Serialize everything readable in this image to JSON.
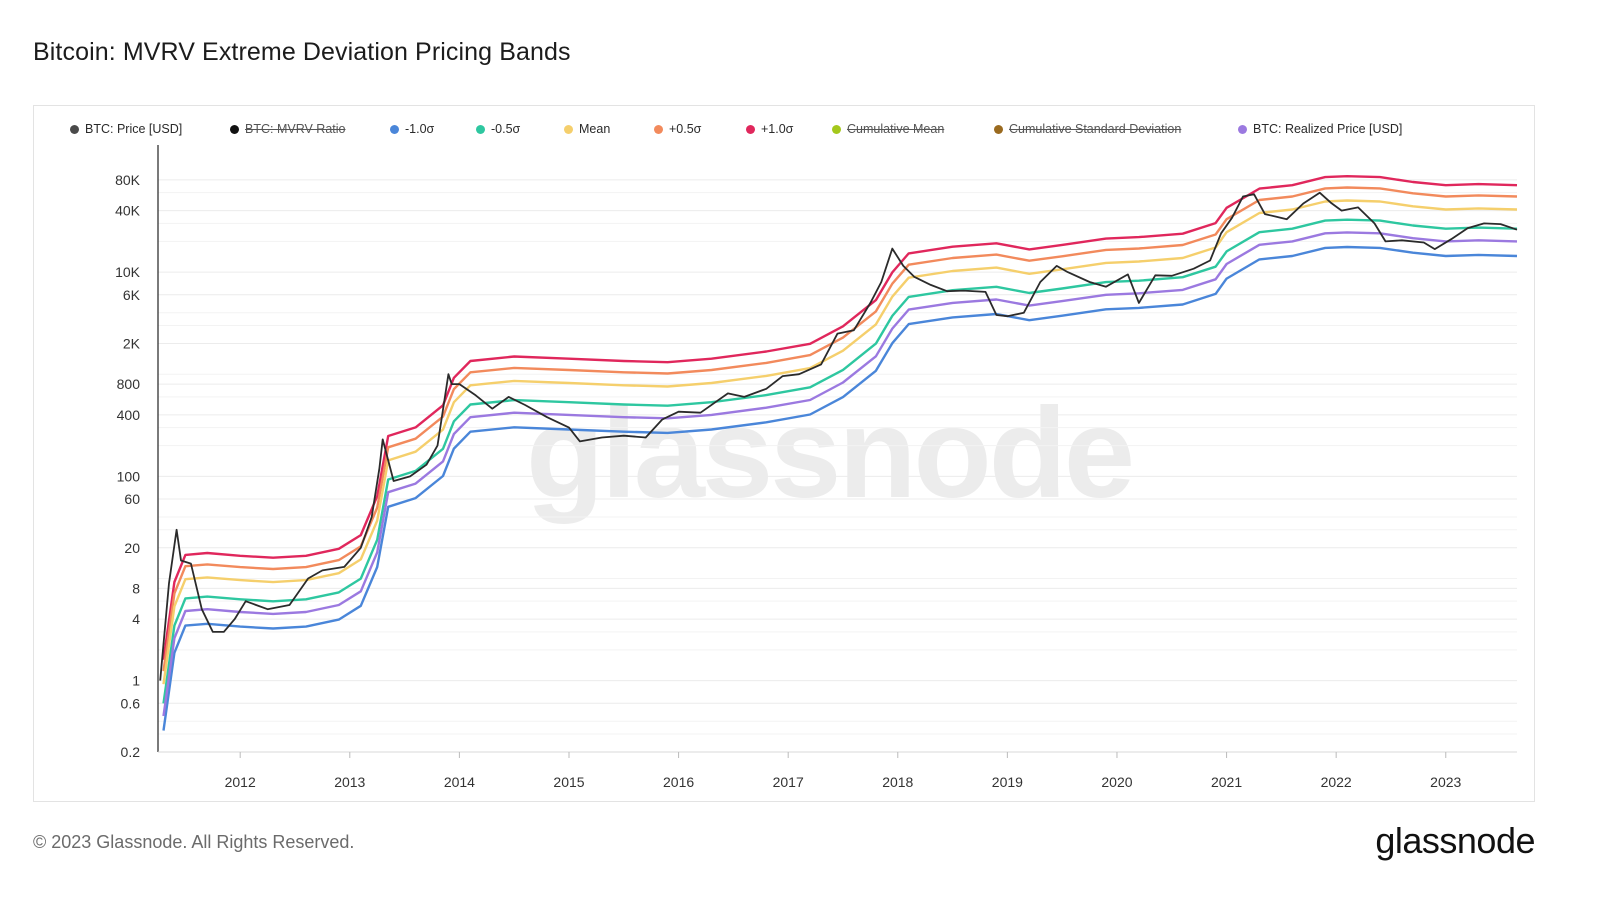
{
  "page": {
    "title": "Bitcoin: MVRV Extreme Deviation Pricing Bands",
    "copyright": "© 2023 Glassnode. All Rights Reserved.",
    "logo": "glassnode",
    "watermark": "glassnode"
  },
  "legend": [
    {
      "label": "BTC: Price [USD]",
      "color": "#4a4a4a",
      "struck": false
    },
    {
      "label": "BTC: MVRV Ratio",
      "color": "#111111",
      "struck": true
    },
    {
      "label": "-1.0σ",
      "color": "#4a86d9",
      "struck": false
    },
    {
      "label": "-0.5σ",
      "color": "#2ec7a0",
      "struck": false
    },
    {
      "label": "Mean",
      "color": "#f5cf6c",
      "struck": false
    },
    {
      "label": "+0.5σ",
      "color": "#f28a5c",
      "struck": false
    },
    {
      "label": "+1.0σ",
      "color": "#e0275c",
      "struck": false
    },
    {
      "label": "Cumulative Mean",
      "color": "#a4c81c",
      "struck": true
    },
    {
      "label": "Cumulative Standard Deviation",
      "color": "#9a6a1f",
      "struck": true
    },
    {
      "label": "BTC: Realized Price [USD]",
      "color": "#9b79e0",
      "struck": false
    }
  ],
  "chart_data": {
    "type": "line",
    "title": "Bitcoin: MVRV Extreme Deviation Pricing Bands",
    "y_scale": "log",
    "ylim": [
      0.2,
      100000
    ],
    "xlim": [
      2011.25,
      2023.65
    ],
    "y_ticks": [
      {
        "label": "80K",
        "value": 80000
      },
      {
        "label": "40K",
        "value": 40000
      },
      {
        "label": "10K",
        "value": 10000
      },
      {
        "label": "6K",
        "value": 6000
      },
      {
        "label": "2K",
        "value": 2000
      },
      {
        "label": "800",
        "value": 800
      },
      {
        "label": "400",
        "value": 400
      },
      {
        "label": "100",
        "value": 100
      },
      {
        "label": "60",
        "value": 60
      },
      {
        "label": "20",
        "value": 20
      },
      {
        "label": "8",
        "value": 8
      },
      {
        "label": "4",
        "value": 4
      },
      {
        "label": "1",
        "value": 1
      },
      {
        "label": "0.6",
        "value": 0.6
      },
      {
        "label": "0.2",
        "value": 0.2
      }
    ],
    "x_ticks": [
      {
        "label": "2012",
        "value": 2012
      },
      {
        "label": "2013",
        "value": 2013
      },
      {
        "label": "2014",
        "value": 2014
      },
      {
        "label": "2015",
        "value": 2015
      },
      {
        "label": "2016",
        "value": 2016
      },
      {
        "label": "2017",
        "value": 2017
      },
      {
        "label": "2018",
        "value": 2018
      },
      {
        "label": "2019",
        "value": 2019
      },
      {
        "label": "2020",
        "value": 2020
      },
      {
        "label": "2021",
        "value": 2021
      },
      {
        "label": "2022",
        "value": 2022
      },
      {
        "label": "2023",
        "value": 2023
      }
    ],
    "band_multipliers": {
      "-1.0σ": 0.72,
      "-0.5σ": 1.33,
      "Mean": 2.05,
      "+0.5σ": 2.75,
      "+1.0σ": 3.55
    },
    "realized_price": {
      "x": [
        2011.3,
        2011.4,
        2011.5,
        2011.7,
        2012.0,
        2012.3,
        2012.6,
        2012.9,
        2013.1,
        2013.25,
        2013.35,
        2013.6,
        2013.85,
        2013.95,
        2014.1,
        2014.5,
        2015.0,
        2015.5,
        2015.9,
        2016.3,
        2016.8,
        2017.2,
        2017.5,
        2017.8,
        2017.95,
        2018.1,
        2018.5,
        2018.9,
        2019.2,
        2019.5,
        2019.9,
        2020.2,
        2020.6,
        2020.9,
        2021.0,
        2021.3,
        2021.6,
        2021.9,
        2022.1,
        2022.4,
        2022.7,
        2023.0,
        2023.3,
        2023.65
      ],
      "values": [
        0.45,
        2.6,
        4.8,
        5.0,
        4.7,
        4.5,
        4.7,
        5.5,
        7.5,
        18,
        70,
        85,
        140,
        260,
        380,
        420,
        400,
        380,
        370,
        400,
        470,
        560,
        830,
        1500,
        2800,
        4300,
        5000,
        5400,
        4700,
        5200,
        6000,
        6200,
        6700,
        8500,
        12000,
        18500,
        20000,
        24000,
        24500,
        24000,
        21500,
        20000,
        20500,
        20000
      ]
    },
    "price": {
      "x": [
        2011.27,
        2011.35,
        2011.42,
        2011.46,
        2011.55,
        2011.65,
        2011.75,
        2011.85,
        2011.95,
        2012.05,
        2012.25,
        2012.45,
        2012.62,
        2012.75,
        2012.95,
        2013.1,
        2013.2,
        2013.27,
        2013.3,
        2013.4,
        2013.55,
        2013.7,
        2013.8,
        2013.9,
        2013.93,
        2014.0,
        2014.15,
        2014.3,
        2014.45,
        2014.6,
        2014.8,
        2015.0,
        2015.1,
        2015.3,
        2015.5,
        2015.7,
        2015.85,
        2016.0,
        2016.2,
        2016.45,
        2016.6,
        2016.8,
        2016.95,
        2017.1,
        2017.3,
        2017.45,
        2017.6,
        2017.75,
        2017.85,
        2017.95,
        2018.05,
        2018.15,
        2018.3,
        2018.45,
        2018.6,
        2018.8,
        2018.9,
        2019.0,
        2019.15,
        2019.3,
        2019.45,
        2019.55,
        2019.75,
        2019.9,
        2020.1,
        2020.2,
        2020.35,
        2020.5,
        2020.7,
        2020.85,
        2020.95,
        2021.05,
        2021.15,
        2021.25,
        2021.35,
        2021.45,
        2021.55,
        2021.7,
        2021.85,
        2021.95,
        2022.05,
        2022.2,
        2022.35,
        2022.45,
        2022.6,
        2022.8,
        2022.9,
        2023.05,
        2023.2,
        2023.35,
        2023.5,
        2023.65
      ],
      "values": [
        1.0,
        9,
        30,
        15,
        14,
        5,
        3,
        3,
        4,
        6,
        5,
        5.5,
        10,
        12,
        13,
        20,
        40,
        120,
        230,
        90,
        100,
        130,
        200,
        1000,
        800,
        800,
        620,
        460,
        600,
        500,
        380,
        300,
        220,
        240,
        250,
        240,
        360,
        430,
        420,
        650,
        600,
        720,
        960,
        1000,
        1250,
        2500,
        2700,
        5000,
        8000,
        17000,
        11500,
        9000,
        7500,
        6500,
        6600,
        6400,
        3800,
        3700,
        4000,
        8000,
        11500,
        10000,
        8000,
        7200,
        9500,
        5000,
        9300,
        9200,
        10800,
        13000,
        24000,
        34000,
        55000,
        58000,
        37000,
        35000,
        33000,
        47000,
        60000,
        48000,
        40000,
        43000,
        30000,
        20000,
        20500,
        19500,
        16800,
        21000,
        27000,
        30000,
        29500,
        26000
      ]
    }
  }
}
